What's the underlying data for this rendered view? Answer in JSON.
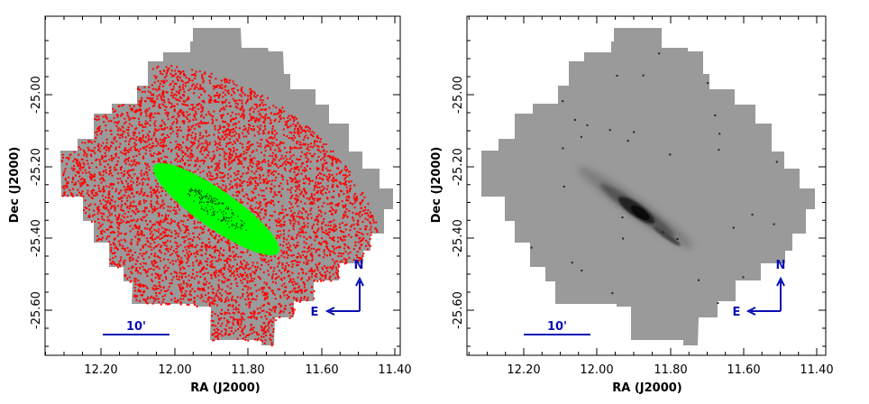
{
  "figure": {
    "panels": [
      {
        "id": "left",
        "xlabel": "RA (J2000)",
        "ylabel": "Dec (J2000)",
        "x_ticks": [
          "12.20",
          "12.00",
          "11.80",
          "11.60",
          "11.40"
        ],
        "y_ticks": [
          "-25.00",
          "-25.20",
          "-25.40",
          "-25.60"
        ],
        "scale_bar_label": "10'",
        "compass": {
          "north": "N",
          "east": "E"
        }
      },
      {
        "id": "right",
        "xlabel": "RA (J2000)",
        "ylabel": "Dec (J2000)",
        "x_ticks": [
          "12.20",
          "12.00",
          "11.80",
          "11.60",
          "11.40"
        ],
        "y_ticks": [
          "-25.00",
          "-25.20",
          "-25.40",
          "-25.60"
        ],
        "scale_bar_label": "10'",
        "compass": {
          "north": "N",
          "east": "E"
        }
      }
    ],
    "colors": {
      "footprint": "#9a9a9a",
      "sources": "#ff0000",
      "ellipse_mask": "#00ff00",
      "annotation": "#0a10b4",
      "galaxy_core": "#111111"
    }
  }
}
